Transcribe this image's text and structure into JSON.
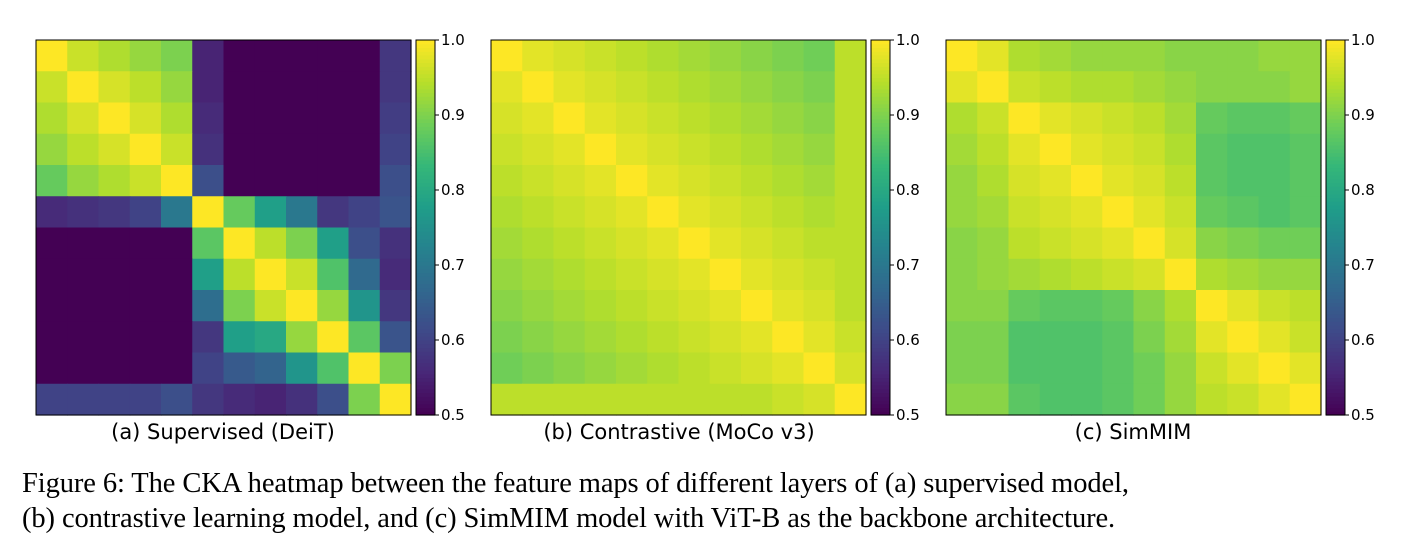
{
  "caption": {
    "line1": "Figure 6: The CKA heatmap between the feature maps of different layers of (a) supervised model,",
    "line2": "(b) contrastive learning model, and (c) SimMIM model with ViT-B as the backbone architecture."
  },
  "chart_data": [
    {
      "type": "heatmap",
      "title": "(a) Supervised (DeiT)",
      "colormap": "viridis",
      "vmin": 0.5,
      "vmax": 1.0,
      "colorbar_ticks": [
        "0.5",
        "0.6",
        "0.7",
        "0.8",
        "0.9",
        "1.0"
      ],
      "values": [
        [
          1.0,
          0.96,
          0.94,
          0.92,
          0.9,
          0.55,
          0.5,
          0.5,
          0.5,
          0.5,
          0.5,
          0.58
        ],
        [
          0.96,
          1.0,
          0.97,
          0.95,
          0.92,
          0.55,
          0.5,
          0.5,
          0.5,
          0.5,
          0.5,
          0.58
        ],
        [
          0.94,
          0.97,
          1.0,
          0.97,
          0.94,
          0.56,
          0.5,
          0.5,
          0.5,
          0.5,
          0.5,
          0.59
        ],
        [
          0.92,
          0.95,
          0.97,
          1.0,
          0.96,
          0.57,
          0.5,
          0.5,
          0.5,
          0.5,
          0.5,
          0.6
        ],
        [
          0.88,
          0.92,
          0.94,
          0.96,
          1.0,
          0.62,
          0.5,
          0.5,
          0.5,
          0.5,
          0.5,
          0.62
        ],
        [
          0.56,
          0.57,
          0.58,
          0.6,
          0.7,
          1.0,
          0.88,
          0.78,
          0.7,
          0.58,
          0.6,
          0.63
        ],
        [
          0.5,
          0.5,
          0.5,
          0.5,
          0.5,
          0.87,
          1.0,
          0.95,
          0.9,
          0.78,
          0.62,
          0.57
        ],
        [
          0.5,
          0.5,
          0.5,
          0.5,
          0.5,
          0.78,
          0.95,
          1.0,
          0.96,
          0.86,
          0.67,
          0.56
        ],
        [
          0.5,
          0.5,
          0.5,
          0.5,
          0.5,
          0.68,
          0.9,
          0.96,
          1.0,
          0.92,
          0.76,
          0.58
        ],
        [
          0.5,
          0.5,
          0.5,
          0.5,
          0.5,
          0.58,
          0.78,
          0.8,
          0.92,
          1.0,
          0.87,
          0.63
        ],
        [
          0.5,
          0.5,
          0.5,
          0.5,
          0.5,
          0.6,
          0.64,
          0.66,
          0.76,
          0.86,
          1.0,
          0.9
        ],
        [
          0.6,
          0.6,
          0.6,
          0.6,
          0.62,
          0.58,
          0.56,
          0.55,
          0.57,
          0.62,
          0.9,
          1.0
        ]
      ]
    },
    {
      "type": "heatmap",
      "title": "(b) Contrastive (MoCo v3)",
      "colormap": "viridis",
      "vmin": 0.5,
      "vmax": 1.0,
      "colorbar_ticks": [
        "0.5",
        "0.6",
        "0.7",
        "0.8",
        "0.9",
        "1.0"
      ],
      "values": [
        [
          1.0,
          0.98,
          0.97,
          0.96,
          0.95,
          0.94,
          0.93,
          0.92,
          0.91,
          0.9,
          0.89,
          0.95
        ],
        [
          0.98,
          1.0,
          0.98,
          0.97,
          0.96,
          0.95,
          0.94,
          0.93,
          0.92,
          0.91,
          0.9,
          0.95
        ],
        [
          0.97,
          0.98,
          1.0,
          0.98,
          0.97,
          0.96,
          0.95,
          0.94,
          0.93,
          0.92,
          0.91,
          0.95
        ],
        [
          0.96,
          0.97,
          0.98,
          1.0,
          0.98,
          0.97,
          0.96,
          0.95,
          0.94,
          0.93,
          0.92,
          0.95
        ],
        [
          0.95,
          0.96,
          0.97,
          0.98,
          1.0,
          0.98,
          0.97,
          0.96,
          0.95,
          0.94,
          0.93,
          0.95
        ],
        [
          0.94,
          0.95,
          0.96,
          0.97,
          0.98,
          1.0,
          0.98,
          0.97,
          0.96,
          0.95,
          0.94,
          0.95
        ],
        [
          0.93,
          0.94,
          0.95,
          0.96,
          0.97,
          0.98,
          1.0,
          0.98,
          0.97,
          0.96,
          0.95,
          0.95
        ],
        [
          0.92,
          0.93,
          0.94,
          0.95,
          0.96,
          0.97,
          0.98,
          1.0,
          0.98,
          0.97,
          0.96,
          0.95
        ],
        [
          0.91,
          0.92,
          0.93,
          0.94,
          0.95,
          0.96,
          0.97,
          0.98,
          1.0,
          0.98,
          0.97,
          0.95
        ],
        [
          0.9,
          0.91,
          0.92,
          0.93,
          0.94,
          0.95,
          0.96,
          0.97,
          0.98,
          1.0,
          0.98,
          0.96
        ],
        [
          0.89,
          0.9,
          0.91,
          0.92,
          0.93,
          0.94,
          0.95,
          0.96,
          0.97,
          0.98,
          1.0,
          0.97
        ],
        [
          0.95,
          0.95,
          0.95,
          0.95,
          0.95,
          0.95,
          0.95,
          0.95,
          0.95,
          0.96,
          0.97,
          1.0
        ]
      ]
    },
    {
      "type": "heatmap",
      "title": "(c) SimMIM",
      "colormap": "viridis",
      "vmin": 0.5,
      "vmax": 1.0,
      "colorbar_ticks": [
        "0.5",
        "0.6",
        "0.7",
        "0.8",
        "0.9",
        "1.0"
      ],
      "values": [
        [
          1.0,
          0.98,
          0.94,
          0.93,
          0.92,
          0.92,
          0.92,
          0.91,
          0.91,
          0.91,
          0.92,
          0.92
        ],
        [
          0.98,
          1.0,
          0.96,
          0.95,
          0.94,
          0.94,
          0.93,
          0.92,
          0.91,
          0.91,
          0.91,
          0.92
        ],
        [
          0.94,
          0.96,
          1.0,
          0.98,
          0.97,
          0.96,
          0.95,
          0.93,
          0.88,
          0.87,
          0.87,
          0.88
        ],
        [
          0.93,
          0.95,
          0.98,
          1.0,
          0.98,
          0.97,
          0.96,
          0.94,
          0.87,
          0.86,
          0.86,
          0.87
        ],
        [
          0.92,
          0.94,
          0.97,
          0.98,
          1.0,
          0.98,
          0.97,
          0.95,
          0.87,
          0.86,
          0.86,
          0.87
        ],
        [
          0.92,
          0.93,
          0.96,
          0.97,
          0.98,
          1.0,
          0.98,
          0.96,
          0.88,
          0.87,
          0.86,
          0.87
        ],
        [
          0.91,
          0.92,
          0.95,
          0.96,
          0.97,
          0.98,
          1.0,
          0.97,
          0.91,
          0.9,
          0.89,
          0.89
        ],
        [
          0.91,
          0.92,
          0.93,
          0.94,
          0.95,
          0.96,
          0.97,
          1.0,
          0.94,
          0.93,
          0.92,
          0.92
        ],
        [
          0.91,
          0.91,
          0.88,
          0.87,
          0.87,
          0.88,
          0.91,
          0.94,
          1.0,
          0.98,
          0.96,
          0.95
        ],
        [
          0.9,
          0.9,
          0.86,
          0.86,
          0.86,
          0.87,
          0.9,
          0.93,
          0.98,
          1.0,
          0.98,
          0.96
        ],
        [
          0.9,
          0.9,
          0.86,
          0.86,
          0.86,
          0.87,
          0.89,
          0.92,
          0.96,
          0.98,
          1.0,
          0.98
        ],
        [
          0.91,
          0.91,
          0.87,
          0.86,
          0.86,
          0.87,
          0.89,
          0.92,
          0.95,
          0.96,
          0.98,
          1.0
        ]
      ]
    }
  ]
}
